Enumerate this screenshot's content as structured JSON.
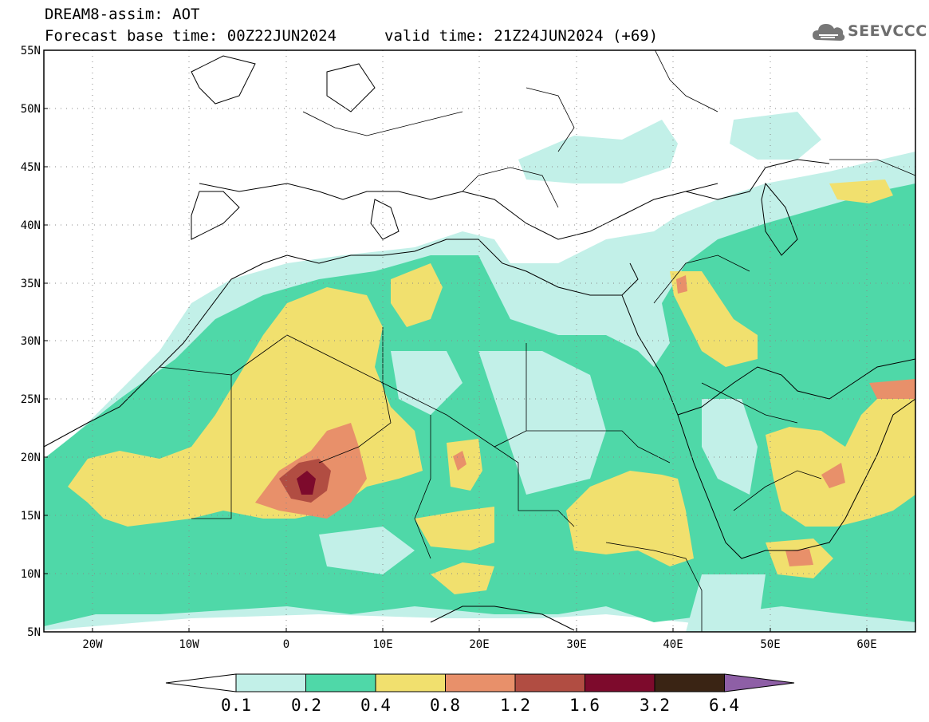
{
  "header": {
    "title": "DREAM8-assim: AOT",
    "base_time": "Forecast base time: 00Z22JUN2024",
    "valid_time": "valid time: 21Z24JUN2024 (+69)"
  },
  "logo": {
    "text": "SEEVCCC",
    "icon": "cloud-icon"
  },
  "map": {
    "lon_range": [
      -25,
      65
    ],
    "lat_range": [
      5,
      55
    ],
    "lat_ticks": [
      "5N",
      "10N",
      "15N",
      "20N",
      "25N",
      "30N",
      "35N",
      "40N",
      "45N",
      "50N",
      "55N"
    ],
    "lon_ticks": [
      "20W",
      "10W",
      "0",
      "10E",
      "20E",
      "30E",
      "40E",
      "50E",
      "60E"
    ],
    "grid": "dotted"
  },
  "colorbar": {
    "labels": [
      "0.1",
      "0.2",
      "0.4",
      "0.8",
      "1.2",
      "1.6",
      "3.2",
      "6.4"
    ],
    "colors": [
      "#ffffff",
      "#c2f0e8",
      "#4fd8a8",
      "#f1e06e",
      "#e8906a",
      "#b14d42",
      "#7d0a2c",
      "#3a2414",
      "#8e5fa6"
    ]
  }
}
